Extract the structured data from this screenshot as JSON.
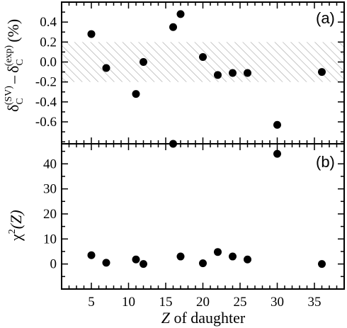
{
  "chart_data": [
    {
      "type": "scatter",
      "panel_label": "(a)",
      "ylabel": {
        "base1": "δ",
        "sub1": "C",
        "sup1": "(SV)",
        "minus": "–",
        "base2": "δ",
        "sub2": "C",
        "sup2": "(exp)",
        "unit": "(%)"
      },
      "x": [
        5,
        7,
        11,
        12,
        16,
        17,
        20,
        22,
        24,
        26,
        30,
        36
      ],
      "y": [
        0.28,
        -0.06,
        -0.32,
        0.0,
        0.35,
        0.48,
        0.05,
        -0.13,
        -0.11,
        -0.11,
        -0.63,
        -0.1
      ],
      "xlim": [
        1,
        39
      ],
      "ylim": [
        -0.82,
        0.6
      ],
      "yticks": [
        0.4,
        0.2,
        0.0,
        -0.2,
        -0.4,
        -0.6
      ],
      "ytick_labels": [
        "0.4",
        "0.2",
        "0.0",
        "-0.2",
        "-0.4",
        "-0.6"
      ],
      "band": {
        "y_low": -0.2,
        "y_high": 0.2,
        "pattern": "hatched"
      },
      "grid": false
    },
    {
      "type": "scatter",
      "panel_label": "(b)",
      "ylabel": {
        "base": "χ",
        "sup": "2",
        "arg": "(Z)"
      },
      "x": [
        5,
        7,
        11,
        12,
        16,
        17,
        20,
        22,
        24,
        26,
        30,
        36
      ],
      "y": [
        3.5,
        0.5,
        1.8,
        0.0,
        48.0,
        3.0,
        0.3,
        4.8,
        3.0,
        1.8,
        44.0,
        0.0
      ],
      "xlim": [
        1,
        39
      ],
      "ylim": [
        -10,
        48
      ],
      "yticks": [
        0,
        10,
        20,
        30,
        40
      ],
      "ytick_labels": [
        "0",
        "10",
        "20",
        "30",
        "40"
      ],
      "xticks": [
        5,
        10,
        15,
        20,
        25,
        30,
        35
      ],
      "xtick_labels": [
        "5",
        "10",
        "15",
        "20",
        "25",
        "30",
        "35"
      ],
      "xlabel": {
        "var": "Z",
        "rest": " of daughter"
      },
      "grid": false
    }
  ],
  "colors": {
    "marker": "#000000",
    "band_hatch": "#aaaaaa",
    "axes": "#000000"
  }
}
